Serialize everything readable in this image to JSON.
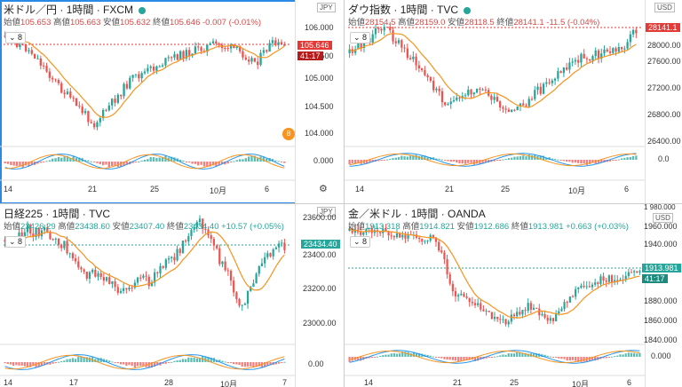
{
  "panels": [
    {
      "key": "usdjpy",
      "title": "米ドル／円",
      "timeframe": "1時間",
      "source": "FXCM",
      "ohlc": {
        "open_label": "始値",
        "open": "105.653",
        "high_label": "高値",
        "high": "105.663",
        "low_label": "安値",
        "low": "105.632",
        "close_label": "終値",
        "close": "105.646",
        "change": "-0.007",
        "change_pct": "(-0.01%)"
      },
      "ma_period": "8",
      "currency": "JPY",
      "price_ticks": [
        "106.000",
        "105.500",
        "105.000",
        "104.500",
        "104.000"
      ],
      "last_price": "105.646",
      "countdown": "41:17",
      "macd_value": "0.000",
      "time_ticks": [
        "14",
        "21",
        "25",
        "10月",
        "6"
      ],
      "badge": "8",
      "colors": {
        "up": "#26a69a",
        "down": "#ef5350",
        "ma": "#f7931e",
        "last": "#e53935"
      }
    },
    {
      "key": "dow",
      "title": "ダウ指数",
      "timeframe": "1時間",
      "source": "TVC",
      "ohlc": {
        "open_label": "始値",
        "open": "28154.5",
        "high_label": "高値",
        "high": "28159.0",
        "low_label": "安値",
        "low": "28118.5",
        "close_label": "終値",
        "close": "28141.1",
        "change": "-11.5",
        "change_pct": "(-0.04%)"
      },
      "ma_period": "8",
      "currency": "USD",
      "price_ticks": [
        "28000.00",
        "27600.00",
        "27200.00",
        "26800.00",
        "26400.00"
      ],
      "last_price": "28141.1",
      "macd_value": "0.0",
      "time_ticks": [
        "14",
        "21",
        "25",
        "10月",
        "6"
      ],
      "colors": {
        "up": "#26a69a",
        "down": "#ef5350",
        "ma": "#f7931e",
        "last": "#e53935"
      }
    },
    {
      "key": "nikkei",
      "title": "日経225",
      "timeframe": "1時間",
      "source": "TVC",
      "ohlc": {
        "open_label": "始値",
        "open": "23426.29",
        "high_label": "高値",
        "high": "23438.60",
        "low_label": "安値",
        "low": "23407.40",
        "close_label": "終値",
        "close": "23434.40",
        "change": "+10.57",
        "change_pct": "(+0.05%)"
      },
      "ma_period": "8",
      "currency": "JPY",
      "price_ticks": [
        "23600.00",
        "23400.00",
        "23200.00",
        "23000.00"
      ],
      "last_price": "23434.40",
      "macd_value": "0.00",
      "time_ticks": [
        "14",
        "17",
        "28",
        "10月",
        "7"
      ],
      "colors": {
        "up": "#26a69a",
        "down": "#ef5350",
        "ma": "#f7931e",
        "last": "#26a69a"
      }
    },
    {
      "key": "gold",
      "title": "金／米ドル",
      "timeframe": "1時間",
      "source": "OANDA",
      "ohlc": {
        "open_label": "始値",
        "open": "1913.318",
        "high_label": "高値",
        "high": "1914.821",
        "low_label": "安値",
        "low": "1912.686",
        "close_label": "終値",
        "close": "1913.981",
        "change": "+0.663",
        "change_pct": "(+0.03%)"
      },
      "ma_period": "8",
      "currency": "USD",
      "price_ticks": [
        "1960.000",
        "1940.000",
        "1920.000",
        "1900.000",
        "1880.000",
        "1860.000",
        "1840.000"
      ],
      "extra_tick": "1 980.000",
      "last_price": "1913.981",
      "countdown": "41:17",
      "macd_value": "0.000",
      "time_ticks": [
        "14",
        "21",
        "25",
        "10月",
        "6"
      ],
      "colors": {
        "up": "#26a69a",
        "down": "#ef5350",
        "ma": "#f7931e",
        "last": "#26a69a"
      }
    }
  ]
}
